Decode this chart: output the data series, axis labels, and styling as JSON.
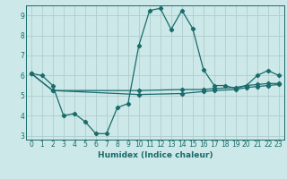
{
  "xlabel": "Humidex (Indice chaleur)",
  "bg_color": "#cce8e8",
  "grid_color": "#b0cccc",
  "line_color": "#1a6b6b",
  "xlim": [
    -0.5,
    23.5
  ],
  "ylim": [
    2.8,
    9.5
  ],
  "yticks": [
    3,
    4,
    5,
    6,
    7,
    8,
    9
  ],
  "xticks": [
    0,
    1,
    2,
    3,
    4,
    5,
    6,
    7,
    8,
    9,
    10,
    11,
    12,
    13,
    14,
    15,
    16,
    17,
    18,
    19,
    20,
    21,
    22,
    23
  ],
  "line1_x": [
    0,
    1,
    2,
    3,
    4,
    5,
    6,
    7,
    8,
    9,
    10,
    11,
    12,
    13,
    14,
    15,
    16,
    17,
    18,
    19,
    20,
    21,
    22,
    23
  ],
  "line1_y": [
    6.1,
    6.0,
    5.5,
    4.0,
    4.1,
    3.7,
    3.1,
    3.1,
    4.4,
    4.6,
    7.5,
    9.25,
    9.35,
    8.3,
    9.25,
    8.35,
    6.3,
    5.5,
    5.5,
    5.35,
    5.5,
    6.0,
    6.25,
    6.0
  ],
  "line2_x": [
    0,
    2,
    10,
    14,
    16,
    17,
    19,
    20,
    21,
    22,
    23
  ],
  "line2_y": [
    6.1,
    5.25,
    5.25,
    5.3,
    5.3,
    5.35,
    5.4,
    5.5,
    5.55,
    5.6,
    5.6
  ],
  "line3_x": [
    0,
    2,
    10,
    14,
    16,
    17,
    19,
    20,
    21,
    22,
    23
  ],
  "line3_y": [
    6.1,
    5.25,
    5.05,
    5.1,
    5.2,
    5.25,
    5.3,
    5.4,
    5.45,
    5.5,
    5.55
  ]
}
